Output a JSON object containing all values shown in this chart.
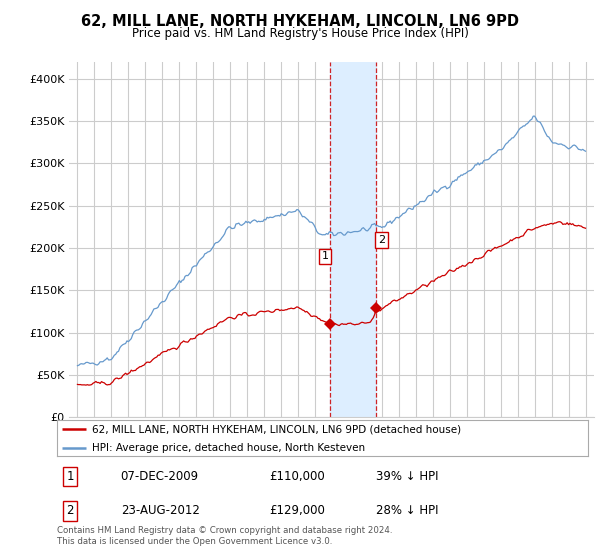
{
  "title": "62, MILL LANE, NORTH HYKEHAM, LINCOLN, LN6 9PD",
  "subtitle": "Price paid vs. HM Land Registry's House Price Index (HPI)",
  "legend_line1": "62, MILL LANE, NORTH HYKEHAM, LINCOLN, LN6 9PD (detached house)",
  "legend_line2": "HPI: Average price, detached house, North Kesteven",
  "transaction1_date": "07-DEC-2009",
  "transaction1_price": "£110,000",
  "transaction1_hpi": "39% ↓ HPI",
  "transaction2_date": "23-AUG-2012",
  "transaction2_price": "£129,000",
  "transaction2_hpi": "28% ↓ HPI",
  "footer": "Contains HM Land Registry data © Crown copyright and database right 2024.\nThis data is licensed under the Open Government Licence v3.0.",
  "ylim": [
    0,
    420000
  ],
  "yticks": [
    0,
    50000,
    100000,
    150000,
    200000,
    250000,
    300000,
    350000,
    400000
  ],
  "red_color": "#cc0000",
  "blue_color": "#6699cc",
  "highlight_color": "#ddeeff",
  "vline_color": "#cc0000",
  "grid_color": "#cccccc",
  "bg_color": "#ffffff",
  "transaction1_x": 2009.92,
  "transaction2_x": 2012.64,
  "transaction1_y": 110000,
  "transaction2_y": 129000,
  "highlight_xmin": 2009.92,
  "highlight_xmax": 2012.64,
  "xlim_min": 1994.5,
  "xlim_max": 2025.5
}
